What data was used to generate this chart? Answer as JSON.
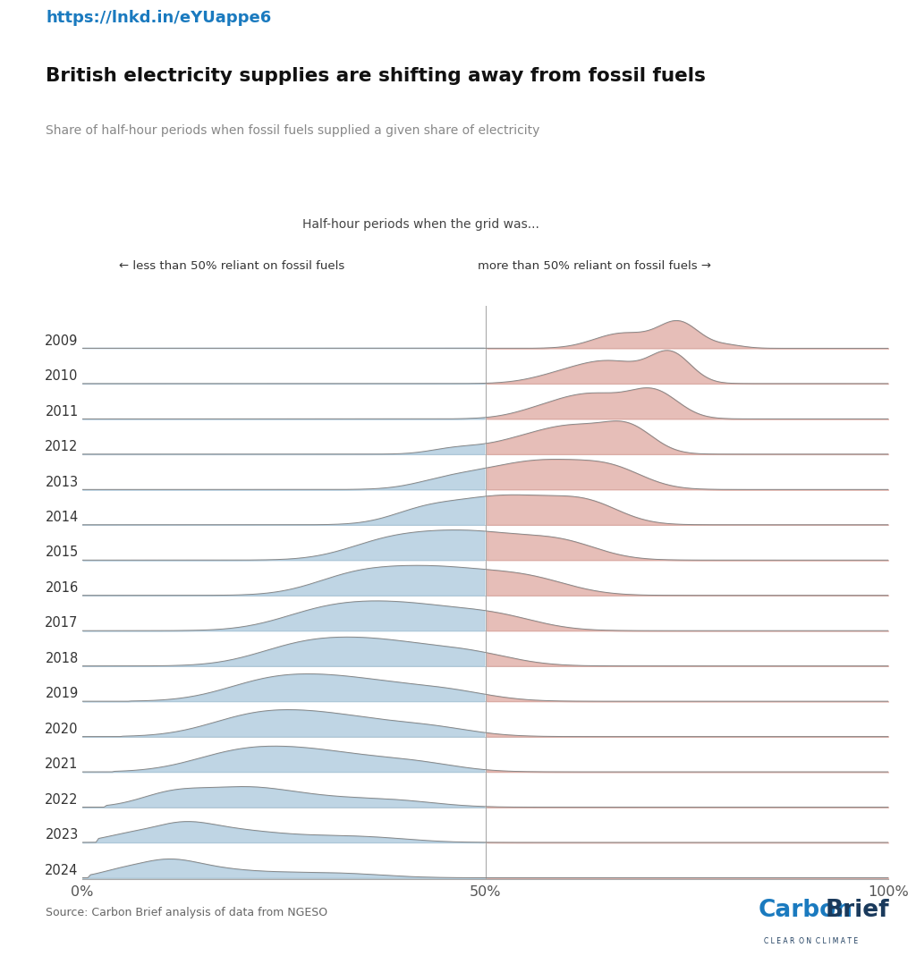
{
  "title": "British electricity supplies are shifting away from fossil fuels",
  "subtitle": "Share of half-hour periods when fossil fuels supplied a given share of electricity",
  "url": "https://lnkd.in/eYUappe6",
  "source": "Source: Carbon Brief analysis of data from NGESO",
  "years": [
    2009,
    2010,
    2011,
    2012,
    2013,
    2014,
    2015,
    2016,
    2017,
    2018,
    2019,
    2020,
    2021,
    2022,
    2023,
    2024
  ],
  "annotation_line1": "Half-hour periods when the grid was...",
  "annotation_left": "← less than 50% reliant on fossil fuels",
  "annotation_right": "more than 50% reliant on fossil fuels →",
  "blue_fill": "#aac8dc",
  "red_fill": "#dea8a0",
  "line_color": "#888888",
  "url_color": "#1a7abf",
  "bg_color": "#ffffff",
  "carbon_brief_blue": "#1a7abf",
  "carbon_brief_dark": "#1a3a5c"
}
